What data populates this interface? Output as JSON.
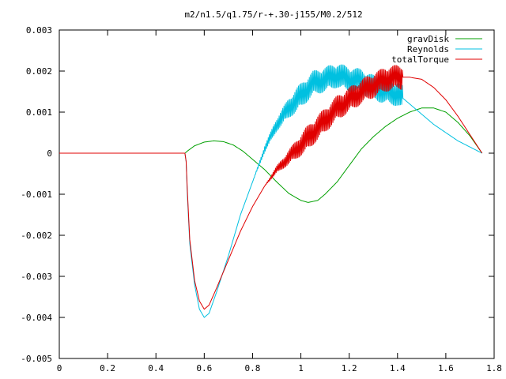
{
  "chart_data": {
    "type": "line",
    "title": "m2/n1.5/q1.75/r-+.30-j155/M0.2/512",
    "xlabel": "",
    "ylabel": "",
    "xlim": [
      0,
      1.8
    ],
    "ylim": [
      -0.005,
      0.003
    ],
    "x_ticks": [
      "0",
      "0.2",
      "0.4",
      "0.6",
      "0.8",
      "1",
      "1.2",
      "1.4",
      "1.6",
      "1.8"
    ],
    "y_ticks": [
      "0.003",
      "0.002",
      "0.001",
      "0",
      "-0.001",
      "-0.002",
      "-0.003",
      "-0.004",
      "-0.005"
    ],
    "grid": false,
    "legend_position": "top-right",
    "series": [
      {
        "name": "gravDisk",
        "color": "#00a000",
        "points": [
          [
            0,
            0
          ],
          [
            0.52,
            0
          ],
          [
            0.53,
            5e-05
          ],
          [
            0.56,
            0.00018
          ],
          [
            0.6,
            0.00027
          ],
          [
            0.64,
            0.0003
          ],
          [
            0.68,
            0.00028
          ],
          [
            0.72,
            0.0002
          ],
          [
            0.76,
            5e-05
          ],
          [
            0.8,
            -0.00015
          ],
          [
            0.85,
            -0.0004
          ],
          [
            0.9,
            -0.0007
          ],
          [
            0.95,
            -0.00098
          ],
          [
            1.0,
            -0.00115
          ],
          [
            1.03,
            -0.0012
          ],
          [
            1.07,
            -0.00115
          ],
          [
            1.1,
            -0.001
          ],
          [
            1.15,
            -0.0007
          ],
          [
            1.2,
            -0.0003
          ],
          [
            1.25,
            0.0001
          ],
          [
            1.3,
            0.0004
          ],
          [
            1.35,
            0.00065
          ],
          [
            1.4,
            0.00085
          ],
          [
            1.45,
            0.001
          ],
          [
            1.5,
            0.0011
          ],
          [
            1.55,
            0.0011
          ],
          [
            1.6,
            0.001
          ],
          [
            1.65,
            0.00075
          ],
          [
            1.7,
            0.00042
          ],
          [
            1.75,
            0
          ]
        ]
      },
      {
        "name": "Reynolds",
        "color": "#00c0e0",
        "points": [
          [
            0,
            0
          ],
          [
            0.52,
            0
          ],
          [
            0.525,
            -0.0002
          ],
          [
            0.53,
            -0.001
          ],
          [
            0.54,
            -0.0022
          ],
          [
            0.56,
            -0.0032
          ],
          [
            0.58,
            -0.0038
          ],
          [
            0.6,
            -0.004
          ],
          [
            0.62,
            -0.0039
          ],
          [
            0.65,
            -0.0034
          ],
          [
            0.7,
            -0.0025
          ],
          [
            0.75,
            -0.0015
          ],
          [
            0.8,
            -0.0007
          ],
          [
            0.85,
            0.0001
          ],
          [
            0.9,
            0.0007
          ],
          [
            0.95,
            0.0011
          ],
          [
            1.0,
            0.0014
          ],
          [
            1.05,
            0.0017
          ],
          [
            1.1,
            0.0018
          ],
          [
            1.15,
            0.0019
          ],
          [
            1.2,
            0.0018
          ],
          [
            1.25,
            0.00175
          ],
          [
            1.3,
            0.0016
          ],
          [
            1.35,
            0.0015
          ],
          [
            1.4,
            0.00145
          ],
          [
            1.45,
            0.0012
          ],
          [
            1.5,
            0.00095
          ],
          [
            1.55,
            0.0007
          ],
          [
            1.6,
            0.0005
          ],
          [
            1.65,
            0.0003
          ],
          [
            1.7,
            0.00015
          ],
          [
            1.75,
            0
          ]
        ],
        "oscillation": {
          "from_x": 0.8,
          "to_x": 1.42,
          "amplitude": 0.0003
        }
      },
      {
        "name": "totalTorque",
        "color": "#e00000",
        "points": [
          [
            0,
            0
          ],
          [
            0.52,
            0
          ],
          [
            0.525,
            -0.0002
          ],
          [
            0.53,
            -0.0009
          ],
          [
            0.54,
            -0.0021
          ],
          [
            0.56,
            -0.0031
          ],
          [
            0.58,
            -0.0036
          ],
          [
            0.6,
            -0.0038
          ],
          [
            0.62,
            -0.0037
          ],
          [
            0.65,
            -0.0033
          ],
          [
            0.7,
            -0.0026
          ],
          [
            0.75,
            -0.0019
          ],
          [
            0.8,
            -0.0013
          ],
          [
            0.85,
            -0.0008
          ],
          [
            0.9,
            -0.0004
          ],
          [
            0.95,
            -0.0001
          ],
          [
            1.0,
            0.0002
          ],
          [
            1.05,
            0.0005
          ],
          [
            1.1,
            0.0008
          ],
          [
            1.15,
            0.0011
          ],
          [
            1.2,
            0.0013
          ],
          [
            1.25,
            0.0015
          ],
          [
            1.3,
            0.00165
          ],
          [
            1.35,
            0.0018
          ],
          [
            1.4,
            0.00185
          ],
          [
            1.45,
            0.00185
          ],
          [
            1.5,
            0.0018
          ],
          [
            1.55,
            0.0016
          ],
          [
            1.6,
            0.0013
          ],
          [
            1.65,
            0.0009
          ],
          [
            1.7,
            0.00045
          ],
          [
            1.75,
            0
          ]
        ],
        "oscillation": {
          "from_x": 0.85,
          "to_x": 1.42,
          "amplitude": 0.0003
        }
      }
    ]
  }
}
